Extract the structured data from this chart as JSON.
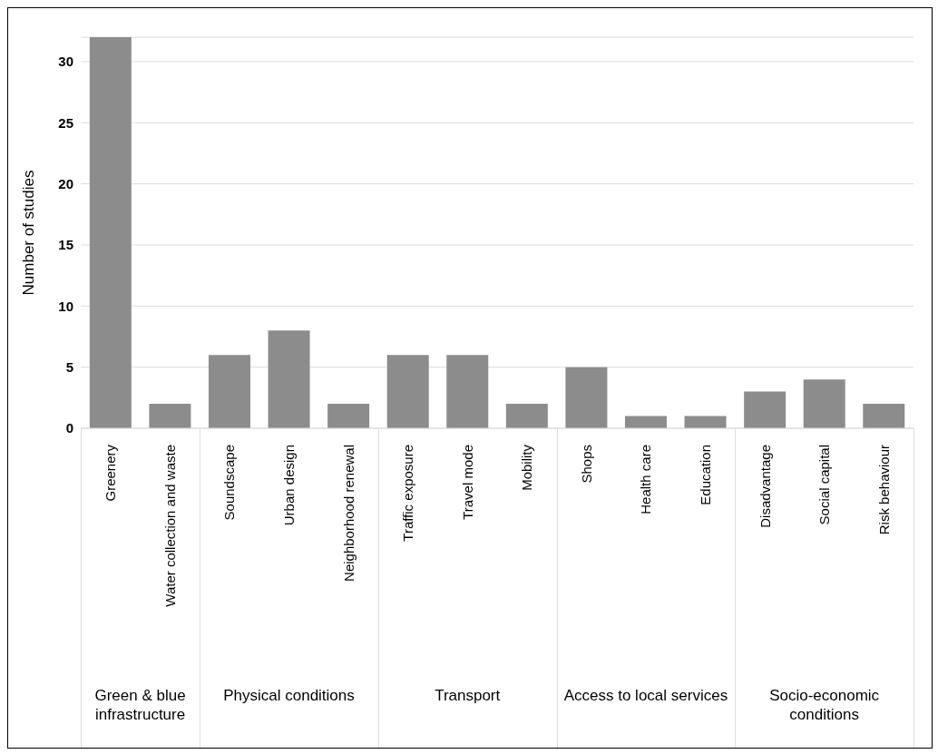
{
  "chart_data": {
    "type": "bar",
    "ylabel": "Number of studies",
    "categories": [
      "Greenery",
      "Water collection and waste",
      "Soundscape",
      "Urban design",
      "Neighborhood renewal",
      "Traffic exposure",
      "Travel mode",
      "Mobility",
      "Shops",
      "Health care",
      "Education",
      "Disadvantage",
      "Social capital",
      "Risk behaviour"
    ],
    "values": [
      32,
      2,
      6,
      8,
      2,
      6,
      6,
      2,
      5,
      1,
      1,
      3,
      4,
      2
    ],
    "color": "#8c8c8c",
    "ylim": [
      0,
      32
    ],
    "yticks": [
      0,
      5,
      10,
      15,
      20,
      25,
      30
    ],
    "grid": "y",
    "legend": false,
    "annotations": [
      "Green & blue infrastructure",
      "Physical conditions",
      "Transport",
      "Access to local services",
      "Socio-economic conditions"
    ]
  }
}
